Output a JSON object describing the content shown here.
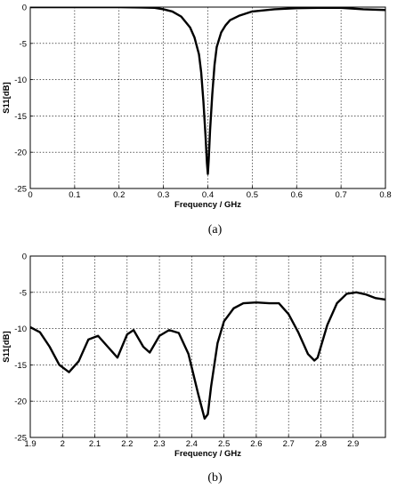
{
  "chart_data": [
    {
      "type": "line",
      "caption": "(a)",
      "xlabel": "Frequency / GHz",
      "ylabel": "S11[dB]",
      "xlim": [
        0,
        0.8
      ],
      "ylim": [
        -25,
        0
      ],
      "xticks": [
        0,
        0.1,
        0.2,
        0.3,
        0.4,
        0.5,
        0.6,
        0.7,
        0.8
      ],
      "xtick_labels": [
        "0",
        "0.1",
        "0.2",
        "0.3",
        "0.4",
        "0.5",
        "0.6",
        "0.7",
        "0.8"
      ],
      "yticks": [
        -25,
        -20,
        -15,
        -10,
        -5,
        0
      ],
      "ytick_labels": [
        "-25",
        "-20",
        "-15",
        "-10",
        "-5",
        "0"
      ],
      "grid": true,
      "series": [
        {
          "x": [
            0,
            0.1,
            0.2,
            0.25,
            0.28,
            0.3,
            0.32,
            0.34,
            0.36,
            0.37,
            0.38,
            0.385,
            0.39,
            0.395,
            0.398,
            0.4,
            0.402,
            0.405,
            0.41,
            0.415,
            0.42,
            0.43,
            0.44,
            0.45,
            0.47,
            0.5,
            0.55,
            0.6,
            0.65,
            0.7,
            0.75,
            0.8
          ],
          "y": [
            0,
            0,
            0,
            -0.05,
            -0.1,
            -0.3,
            -0.6,
            -1.3,
            -2.8,
            -4.2,
            -6.5,
            -9,
            -13,
            -18,
            -21.5,
            -23,
            -21,
            -17,
            -12,
            -8,
            -5.5,
            -3.5,
            -2.5,
            -1.8,
            -1.2,
            -0.6,
            -0.3,
            -0.15,
            -0.1,
            -0.1,
            -0.3,
            -0.4
          ]
        }
      ]
    },
    {
      "type": "line",
      "caption": "(b)",
      "xlabel": "Frequency / GHz",
      "ylabel": "S11[dB]",
      "xlim": [
        1.9,
        3.0
      ],
      "ylim": [
        -25,
        0
      ],
      "xticks": [
        1.9,
        2.0,
        2.1,
        2.2,
        2.3,
        2.4,
        2.5,
        2.6,
        2.7,
        2.8,
        2.9
      ],
      "xtick_labels": [
        "1.9",
        "2",
        "2.1",
        "2.2",
        "2.3",
        "2.4",
        "2.5",
        "2.6",
        "2.7",
        "2.8",
        "2.9"
      ],
      "yticks": [
        -25,
        -20,
        -15,
        -10,
        -5,
        0
      ],
      "ytick_labels": [
        "-25",
        "-20",
        "-15",
        "-10",
        "-5",
        "0"
      ],
      "grid": true,
      "series": [
        {
          "x": [
            1.9,
            1.93,
            1.96,
            1.99,
            2.02,
            2.05,
            2.08,
            2.11,
            2.14,
            2.17,
            2.2,
            2.22,
            2.25,
            2.27,
            2.3,
            2.33,
            2.36,
            2.39,
            2.42,
            2.44,
            2.45,
            2.46,
            2.48,
            2.5,
            2.53,
            2.56,
            2.6,
            2.64,
            2.67,
            2.7,
            2.73,
            2.76,
            2.78,
            2.79,
            2.8,
            2.82,
            2.85,
            2.88,
            2.91,
            2.94,
            2.97,
            3.0
          ],
          "y": [
            -9.8,
            -10.5,
            -12.5,
            -15,
            -16,
            -14.5,
            -11.5,
            -11,
            -12.5,
            -14,
            -10.8,
            -10.2,
            -12.5,
            -13.3,
            -11,
            -10.2,
            -10.6,
            -13.5,
            -19,
            -22.4,
            -21.8,
            -18,
            -12,
            -9,
            -7.2,
            -6.5,
            -6.4,
            -6.5,
            -6.5,
            -8,
            -10.5,
            -13.5,
            -14.4,
            -14,
            -12.5,
            -9.5,
            -6.5,
            -5.2,
            -5,
            -5.3,
            -5.8,
            -6
          ]
        }
      ]
    }
  ]
}
